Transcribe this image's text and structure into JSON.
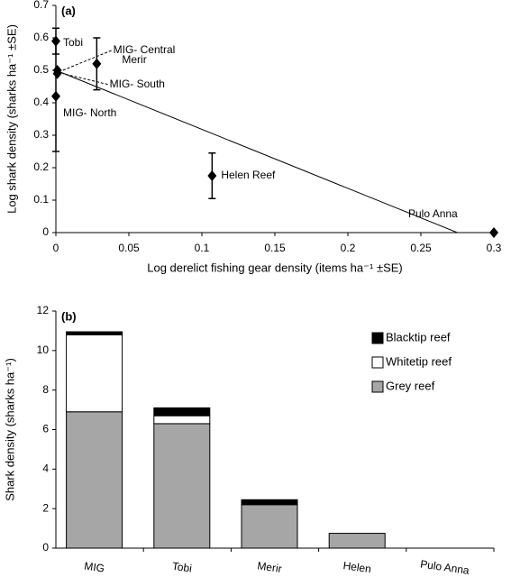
{
  "chart_data": [
    {
      "type": "scatter",
      "panel_label": "(a)",
      "x_label": "Log derelict fishing gear density (items ha⁻¹ ±SE)",
      "y_label": "Log shark density (sharks ha⁻¹ ±SE)",
      "labels": [
        "Tobi",
        "MIG- Central",
        "Merir",
        "MIG- South",
        "MIG- North",
        "Helen Reef",
        "Pulo Anna"
      ],
      "x": [
        0,
        0.001,
        0.028,
        0.001,
        0,
        0.107,
        0.3
      ],
      "y": [
        0.59,
        0.5,
        0.52,
        0.49,
        0.42,
        0.175,
        0
      ],
      "errors": [
        0.04,
        null,
        0.08,
        null,
        0.17,
        0.07,
        null
      ],
      "trendline": {
        "x": [
          0,
          0.275
        ],
        "y": [
          0.5,
          0
        ]
      },
      "color": "#000000",
      "xlim": [
        0,
        0.3
      ],
      "xticks": [
        0,
        0.05,
        0.1,
        0.15,
        0.2,
        0.25,
        0.3
      ],
      "ylim": [
        0,
        0.7
      ],
      "yticks": [
        0,
        0.1,
        0.2,
        0.3,
        0.4,
        0.5,
        0.6,
        0.7
      ],
      "grid": false
    },
    {
      "type": "bar",
      "stacked": true,
      "panel_label": "(b)",
      "y_label": "Shark density (sharks ha⁻¹)",
      "categories": [
        "MIG",
        "Tobi",
        "Merir",
        "Helen",
        "Pulo Anna"
      ],
      "series": [
        {
          "name": "Grey reef",
          "color": "#a6a6a6",
          "values": [
            6.9,
            6.3,
            2.2,
            0.75,
            0
          ]
        },
        {
          "name": "Whitetip reef",
          "color": "#ffffff",
          "values": [
            3.9,
            0.4,
            0,
            0,
            0
          ]
        },
        {
          "name": "Blacktip reef",
          "color": "#000000",
          "values": [
            0.15,
            0.4,
            0.25,
            0,
            0
          ]
        }
      ],
      "ylim": [
        0,
        12
      ],
      "yticks": [
        0,
        2,
        4,
        6,
        8,
        10,
        12
      ],
      "grid": false,
      "legend": "top-right"
    }
  ]
}
